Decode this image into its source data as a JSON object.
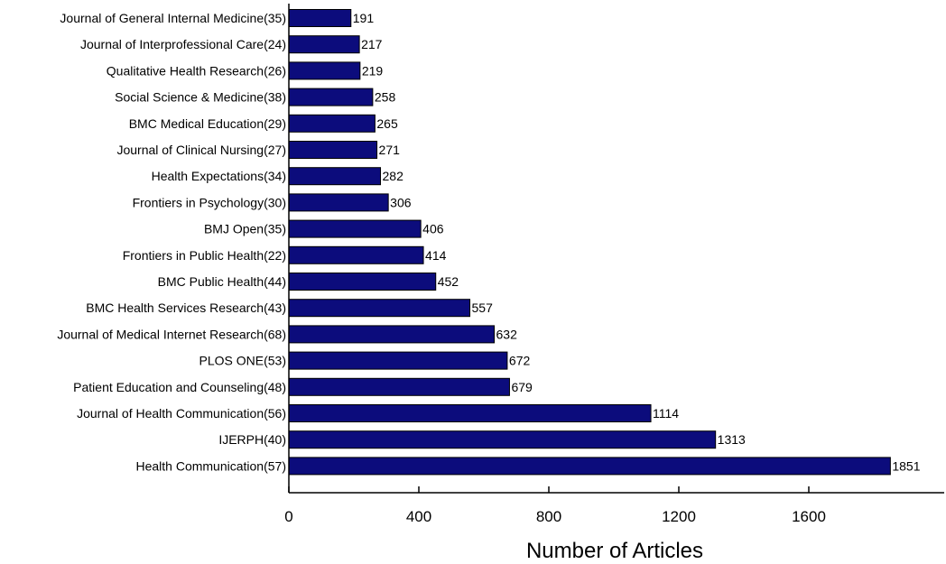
{
  "chart_data": {
    "type": "bar",
    "orientation": "horizontal",
    "categories": [
      "Journal of General Internal Medicine(35)",
      "Journal of Interprofessional Care(24)",
      "Qualitative Health Research(26)",
      "Social Science & Medicine(38)",
      "BMC Medical Education(29)",
      "Journal of Clinical Nursing(27)",
      "Health Expectations(34)",
      "Frontiers in Psychology(30)",
      "BMJ Open(35)",
      "Frontiers in Public Health(22)",
      "BMC Public Health(44)",
      "BMC Health Services Research(43)",
      "Journal of Medical Internet Research(68)",
      "PLOS ONE(53)",
      "Patient Education and Counseling(48)",
      "Journal of Health Communication(56)",
      "IJERPH(40)",
      "Health Communication(57)"
    ],
    "values": [
      191,
      217,
      219,
      258,
      265,
      271,
      282,
      306,
      406,
      414,
      452,
      557,
      632,
      672,
      679,
      1114,
      1313,
      1851
    ],
    "xlabel": "Number of Articles",
    "ylabel": "",
    "xlim": [
      0,
      2000
    ],
    "xticks": [
      0,
      400,
      800,
      1200,
      1600
    ],
    "bar_color": "#0c0c7c",
    "grid": false
  }
}
